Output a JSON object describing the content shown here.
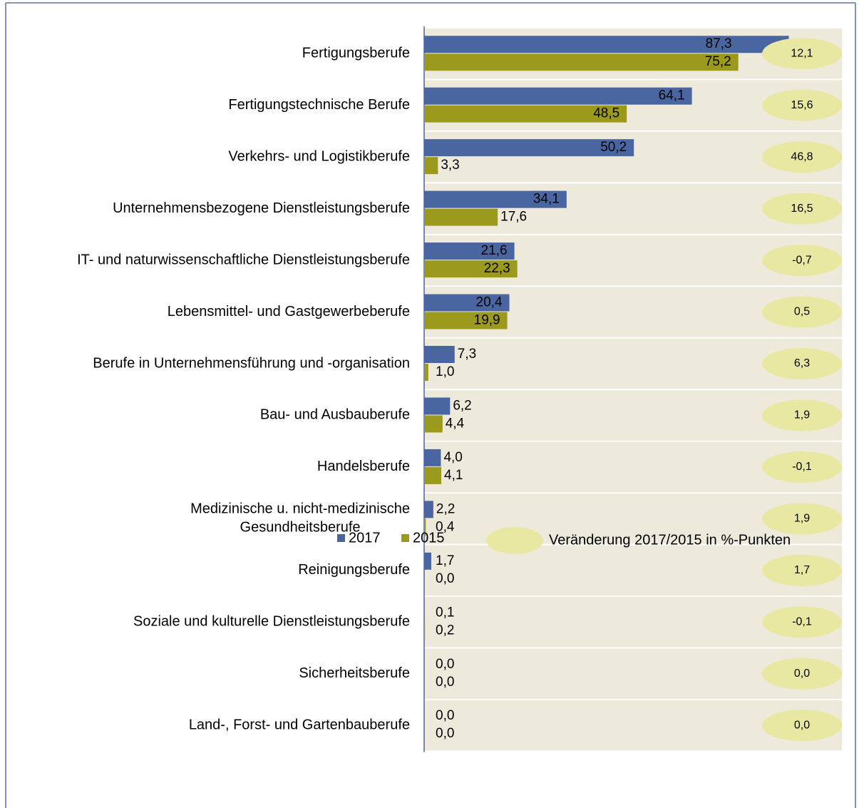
{
  "chart_data": {
    "type": "bar",
    "orientation": "horizontal",
    "categories": [
      "Fertigungsberufe",
      "Fertigungstechnische Berufe",
      "Verkehrs- und Logistikberufe",
      "Unternehmensbezogene Dienstleistungsberufe",
      "IT- und naturwissenschaftliche Dienstleistungsberufe",
      "Lebensmittel- und Gastgewerbeberufe",
      "Berufe in Unternehmensführung und -organisation",
      "Bau- und Ausbauberufe",
      "Handelsberufe",
      "Medizinische u. nicht-medizinische\nGesundheitsberufe",
      "Reinigungsberufe",
      "Soziale und kulturelle Dienstleistungsberufe",
      "Sicherheitsberufe",
      "Land-, Forst- und Gartenbauberufe"
    ],
    "series": [
      {
        "name": "2017",
        "color": "#4a66a0",
        "label_color": "#ffffff",
        "values": [
          87.3,
          64.1,
          50.2,
          34.1,
          21.6,
          20.4,
          7.3,
          6.2,
          4.0,
          2.2,
          1.7,
          0.1,
          0.0,
          0.0
        ],
        "value_labels": [
          "87,3",
          "64,1",
          "50,2",
          "34,1",
          "21,6",
          "20,4",
          "7,3",
          "6,2",
          "4,0",
          "2,2",
          "1,7",
          "0,1",
          "0,0",
          "0,0"
        ]
      },
      {
        "name": "2015",
        "color": "#9c9a1c",
        "label_color": "#000000",
        "values": [
          75.2,
          48.5,
          3.3,
          17.6,
          22.3,
          19.9,
          1.0,
          4.4,
          4.1,
          0.4,
          0.0,
          0.2,
          0.0,
          0.0
        ],
        "value_labels": [
          "75,2",
          "48,5",
          "3,3",
          "17,6",
          "22,3",
          "19,9",
          "1,0",
          "4,4",
          "4,1",
          "0,4",
          "0,0",
          "0,2",
          "0,0",
          "0,0"
        ]
      }
    ],
    "change": {
      "name": "Veränderung 2017/2015 in %-Punkten",
      "color": "#e8e8a2",
      "values": [
        12.1,
        15.6,
        46.8,
        16.5,
        -0.7,
        0.5,
        6.3,
        1.9,
        -0.1,
        1.9,
        1.7,
        -0.1,
        0.0,
        0.0
      ],
      "value_labels": [
        "12,1",
        "15,6",
        "46,8",
        "16,5",
        "-0,7",
        "0,5",
        "6,3",
        "1,9",
        "-0,1",
        "1,9",
        "1,7",
        "-0,1",
        "0,0",
        "0,0"
      ]
    },
    "xlim": [
      0,
      100
    ]
  }
}
